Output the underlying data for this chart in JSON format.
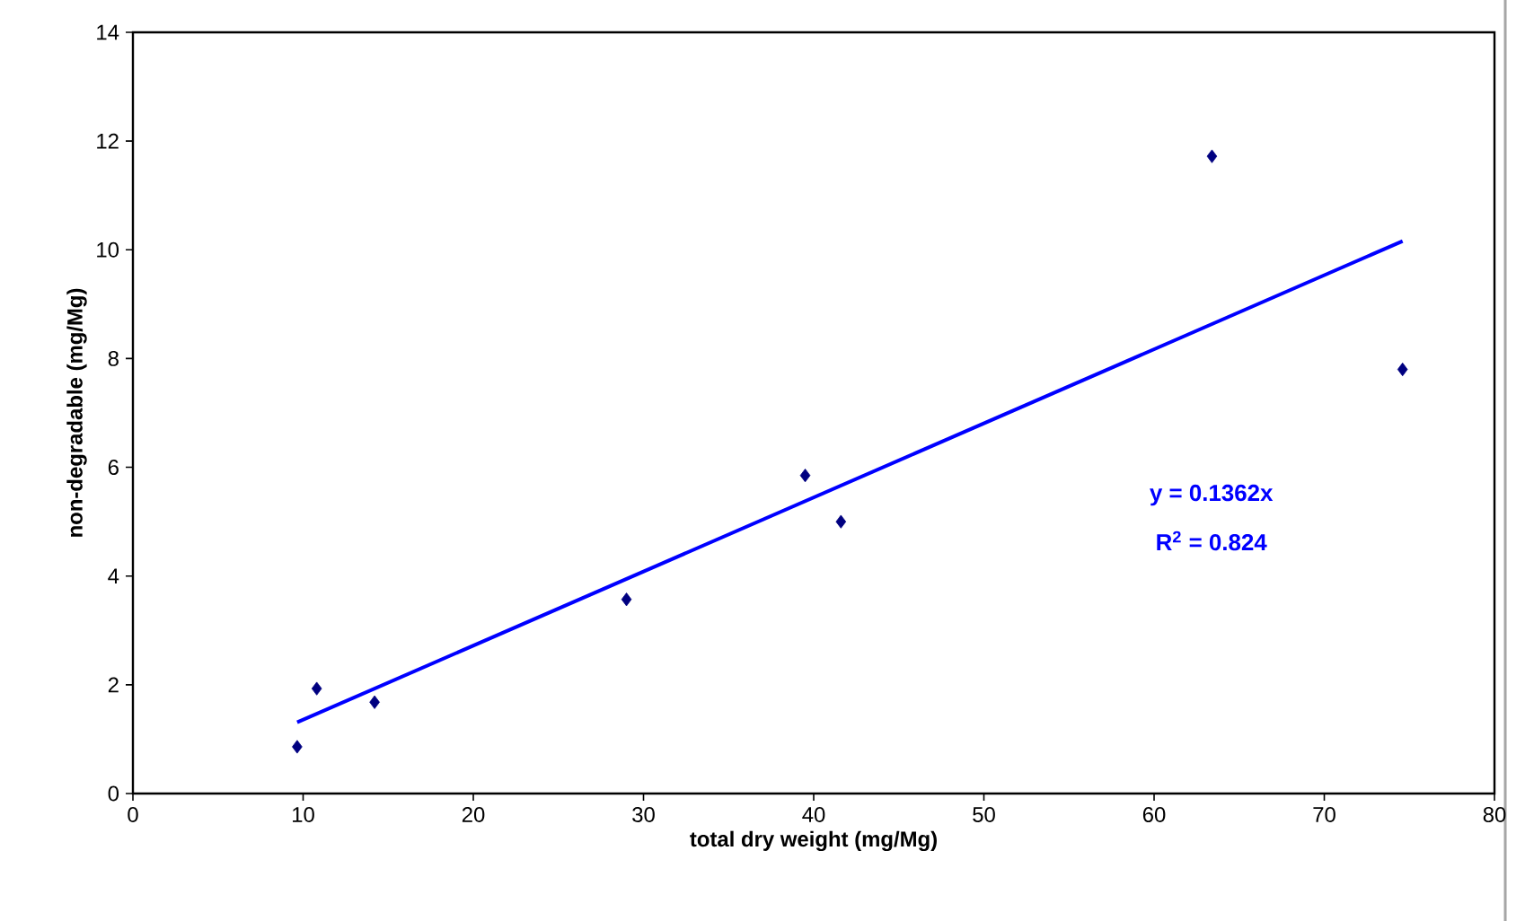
{
  "chart_data": {
    "type": "scatter",
    "xlabel": "total dry weight (mg/Mg)",
    "ylabel": "non-degradable (mg/Mg)",
    "xlim": [
      0,
      80
    ],
    "xticks": [
      0,
      10,
      20,
      30,
      40,
      50,
      60,
      70,
      80
    ],
    "ylim": [
      0,
      14
    ],
    "yticks": [
      0,
      2,
      4,
      6,
      8,
      10,
      12,
      14
    ],
    "marker": "diamond",
    "series": [
      {
        "color": "#000080",
        "x": [
          9.65,
          10.8,
          14.2,
          29.0,
          39.5,
          41.6,
          63.4,
          74.6
        ],
        "values": [
          0.86,
          1.93,
          1.68,
          3.57,
          5.85,
          5.0,
          11.72,
          7.8
        ]
      },
      {
        "type": "line",
        "color": "#0000ff",
        "marker": "none",
        "line_style": "solid",
        "x": [
          9.65,
          74.6
        ],
        "values": [
          1.31,
          10.16
        ]
      }
    ],
    "annotations": [
      "y = 0.1362x",
      "R$^{2}$ = 0.824"
    ]
  }
}
